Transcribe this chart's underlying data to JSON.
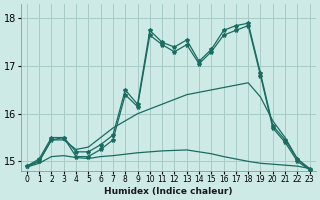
{
  "xlabel": "Humidex (Indice chaleur)",
  "bg_color": "#ceeae6",
  "grid_color": "#a8ccc8",
  "line_color": "#1a6b60",
  "xlim": [
    -0.5,
    23.5
  ],
  "ylim": [
    14.8,
    18.3
  ],
  "yticks": [
    15,
    16,
    17,
    18
  ],
  "xticks": [
    0,
    1,
    2,
    3,
    4,
    5,
    6,
    7,
    8,
    9,
    10,
    11,
    12,
    13,
    14,
    15,
    16,
    17,
    18,
    19,
    20,
    21,
    22,
    23
  ],
  "s1_x": [
    0,
    1,
    2,
    3,
    4,
    5,
    6,
    7,
    8,
    9,
    10,
    11,
    12,
    13,
    14,
    15,
    16,
    17,
    18,
    19,
    20,
    21,
    22,
    23
  ],
  "s1_y": [
    14.9,
    15.05,
    15.5,
    15.5,
    15.2,
    15.2,
    15.35,
    15.55,
    16.5,
    16.2,
    17.75,
    17.5,
    17.4,
    17.55,
    17.1,
    17.35,
    17.75,
    17.85,
    17.9,
    16.85,
    15.75,
    15.45,
    15.05,
    14.85
  ],
  "s2_x": [
    0,
    1,
    2,
    3,
    4,
    5,
    6,
    7,
    8,
    9,
    10,
    11,
    12,
    13,
    14,
    15,
    16,
    17,
    18,
    19,
    20,
    21,
    22,
    23
  ],
  "s2_y": [
    14.9,
    15.0,
    15.45,
    15.5,
    15.1,
    15.1,
    15.25,
    15.45,
    16.4,
    16.15,
    17.65,
    17.45,
    17.3,
    17.45,
    17.05,
    17.3,
    17.65,
    17.75,
    17.85,
    16.8,
    15.7,
    15.4,
    15.0,
    14.82
  ],
  "s3_x": [
    0,
    1,
    2,
    3,
    4,
    5,
    6,
    7,
    8,
    9,
    10,
    11,
    12,
    13,
    14,
    15,
    16,
    17,
    18,
    19,
    20,
    21,
    22,
    23
  ],
  "s3_y": [
    14.9,
    15.0,
    15.45,
    15.45,
    15.25,
    15.3,
    15.5,
    15.7,
    15.85,
    16.0,
    16.1,
    16.2,
    16.3,
    16.4,
    16.45,
    16.5,
    16.55,
    16.6,
    16.65,
    16.35,
    15.85,
    15.5,
    15.05,
    14.82
  ],
  "s4_x": [
    0,
    1,
    2,
    3,
    4,
    5,
    6,
    7,
    8,
    9,
    10,
    11,
    12,
    13,
    14,
    15,
    16,
    17,
    18,
    19,
    20,
    21,
    22,
    23
  ],
  "s4_y": [
    14.88,
    14.96,
    15.1,
    15.12,
    15.08,
    15.06,
    15.1,
    15.12,
    15.15,
    15.18,
    15.2,
    15.22,
    15.23,
    15.24,
    15.2,
    15.16,
    15.1,
    15.05,
    15.0,
    14.96,
    14.94,
    14.92,
    14.9,
    14.85
  ]
}
